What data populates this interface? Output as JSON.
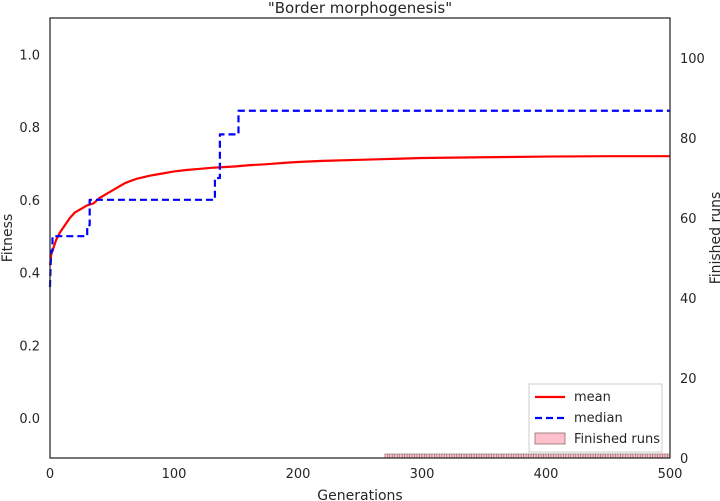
{
  "chart_data": {
    "type": "line",
    "title": "\"Border morphogenesis\"",
    "xlabel": "Generations",
    "ylabel": "Fitness",
    "y2label": "Finished runs",
    "xlim": [
      0,
      500
    ],
    "ylim": [
      -0.11,
      1.1
    ],
    "y2lim": [
      0,
      110
    ],
    "xticks": [
      0,
      100,
      200,
      300,
      400,
      500
    ],
    "yticks": [
      0.0,
      0.2,
      0.4,
      0.6,
      0.8,
      1.0
    ],
    "y2ticks": [
      0,
      20,
      40,
      60,
      80,
      100
    ],
    "grid": false,
    "legend_position": "lower-right",
    "series": [
      {
        "name": "mean",
        "color": "#ff0000",
        "style": "solid",
        "x": [
          0,
          1,
          3,
          5,
          8,
          12,
          16,
          20,
          25,
          30,
          35,
          40,
          45,
          50,
          55,
          60,
          65,
          70,
          75,
          80,
          90,
          100,
          110,
          120,
          130,
          140,
          150,
          160,
          175,
          190,
          200,
          220,
          250,
          280,
          300,
          350,
          400,
          450,
          500
        ],
        "y": [
          0.42,
          0.45,
          0.47,
          0.49,
          0.51,
          0.53,
          0.55,
          0.565,
          0.575,
          0.585,
          0.59,
          0.605,
          0.615,
          0.625,
          0.635,
          0.645,
          0.652,
          0.658,
          0.662,
          0.666,
          0.672,
          0.678,
          0.682,
          0.685,
          0.688,
          0.69,
          0.692,
          0.695,
          0.698,
          0.702,
          0.704,
          0.707,
          0.71,
          0.713,
          0.715,
          0.717,
          0.719,
          0.72,
          0.72
        ]
      },
      {
        "name": "median",
        "color": "#0000ff",
        "style": "dashed",
        "x": [
          0,
          0.5,
          1,
          2,
          2,
          30,
          30,
          32,
          32,
          37,
          37,
          133,
          133,
          137,
          137,
          141,
          141,
          150,
          150,
          152,
          152,
          500
        ],
        "y": [
          0.36,
          0.42,
          0.46,
          0.46,
          0.5,
          0.5,
          0.53,
          0.53,
          0.6,
          0.6,
          0.6,
          0.6,
          0.66,
          0.66,
          0.78,
          0.78,
          0.78,
          0.78,
          0.78,
          0.78,
          0.845,
          0.845
        ]
      }
    ],
    "bars": {
      "name": "Finished runs",
      "color": "#ffc0cb",
      "edge_color": "#8a6e6e",
      "axis": "right",
      "x_start": 270,
      "x_end": 500,
      "value": 1
    },
    "legend": [
      "mean",
      "median",
      "Finished runs"
    ]
  }
}
